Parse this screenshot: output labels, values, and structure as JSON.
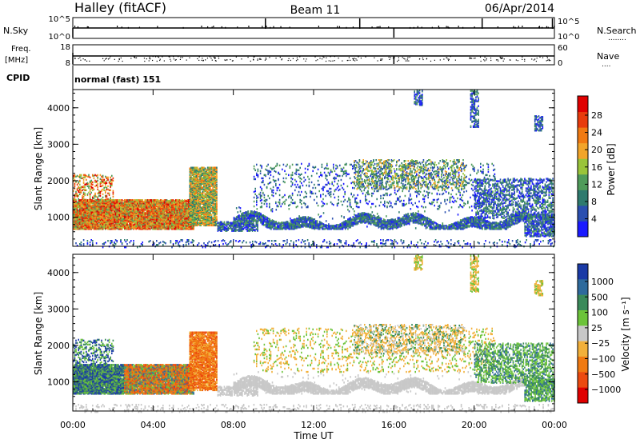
{
  "header": {
    "station": "Halley (fitACF)",
    "beam": "Beam 11",
    "date": "06/Apr/2014"
  },
  "summary_panels": {
    "nsky_label": "N.Sky",
    "nsearch_label": "N.Search",
    "nsearch_dots": "........",
    "freq_label_line1": "Freq.",
    "freq_label_line2": "[MHz]",
    "nave_label": "Nave",
    "nave_dots": "....",
    "cpid_label": "CPID",
    "cpid_text": "normal (fast) 151",
    "noise_left_ticks": [
      "10^5",
      "10^0"
    ],
    "noise_right_ticks": [
      "10^5",
      "10^0"
    ],
    "freq_ticks": [
      "18",
      "8"
    ],
    "nave_ticks": [
      "60",
      "0"
    ]
  },
  "colors": {
    "power_scale": [
      "#1a1aff",
      "#2a4fb0",
      "#2e7a6e",
      "#4f9b5a",
      "#9ac43a",
      "#f2a52a",
      "#f07a12",
      "#e83b0c",
      "#e00000"
    ],
    "velocity_scale": [
      "#1a3aa6",
      "#2e6a9c",
      "#3a8a5a",
      "#6cc33a",
      "#c8c8c8",
      "#f2b03a",
      "#f07a12",
      "#ec4a10",
      "#e00000"
    ]
  },
  "chart_data": [
    {
      "type": "heatmap",
      "name": "power",
      "ylabel": "Slant Range [km]",
      "xlabel": "",
      "xlim": [
        "00:00",
        "24:00"
      ],
      "ylim": [
        200,
        4500
      ],
      "x_ticks": [
        "00:00",
        "04:00",
        "08:00",
        "12:00",
        "16:00",
        "20:00",
        "00:00"
      ],
      "y_ticks": [
        1000,
        2000,
        3000,
        4000
      ],
      "colorbar": {
        "label": "Power [dB]",
        "ticks": [
          "28",
          "24",
          "20",
          "16",
          "12",
          "8",
          "4"
        ],
        "range": [
          0,
          30
        ]
      }
    },
    {
      "type": "heatmap",
      "name": "velocity",
      "ylabel": "Slant Range [km]",
      "xlabel": "Time UT",
      "xlim": [
        "00:00",
        "24:00"
      ],
      "ylim": [
        200,
        4500
      ],
      "x_ticks": [
        "00:00",
        "04:00",
        "08:00",
        "12:00",
        "16:00",
        "20:00",
        "00:00"
      ],
      "y_ticks": [
        1000,
        2000,
        3000,
        4000
      ],
      "colorbar": {
        "label": "Velocity [m s⁻¹]",
        "ticks": [
          "1000",
          "500",
          "100",
          "25",
          "−25",
          "−100",
          "−500",
          "−1000"
        ]
      }
    }
  ]
}
